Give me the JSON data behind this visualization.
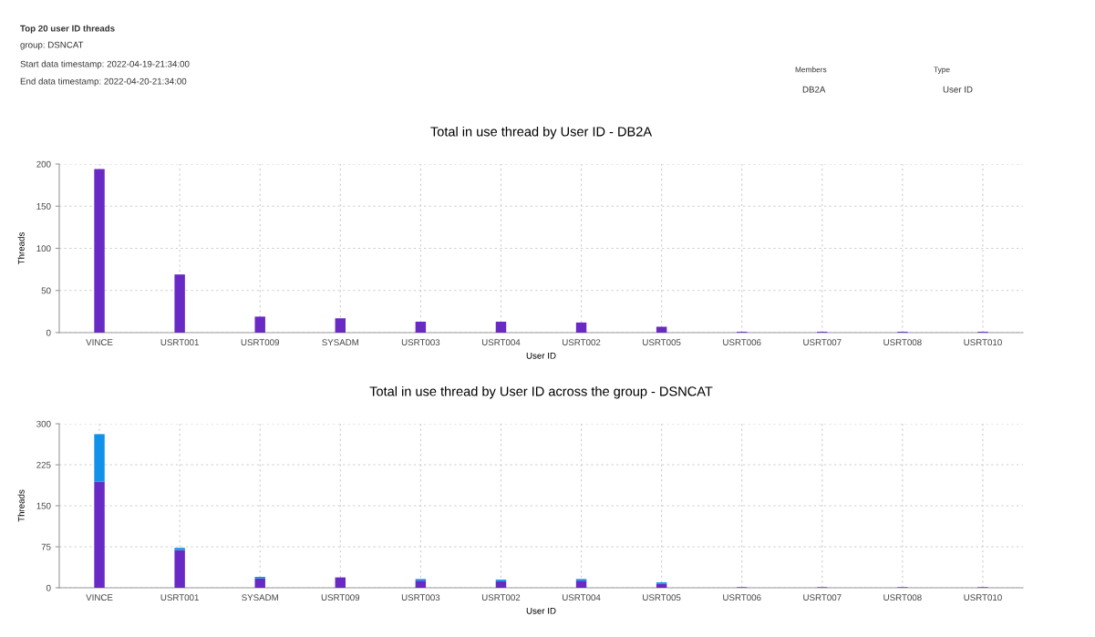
{
  "chart_data": [
    {
      "type": "bar",
      "title": "Total in use thread by User ID - DB2A",
      "xlabel": "User ID",
      "ylabel": "Threads",
      "categories": [
        "VINCE",
        "USRT001",
        "USRT009",
        "SYSADM",
        "USRT003",
        "USRT004",
        "USRT002",
        "USRT005",
        "USRT006",
        "USRT007",
        "USRT008",
        "USRT010"
      ],
      "values": [
        194,
        69,
        19,
        17,
        13,
        13,
        12,
        7,
        1,
        1,
        1,
        1
      ],
      "color": "#6929c4",
      "ylim": [
        0,
        200
      ],
      "yticks": [
        0,
        50,
        100,
        150,
        200
      ],
      "grid": true,
      "annotations": [
        "Top 20 user ID threads",
        "group: DSNCAT",
        "Start data timestamp: 2022-04-19-21:34:00",
        "End data timestamp: 2022-04-20-21:34:00",
        "Members",
        "DB2A",
        "Type",
        "User ID"
      ]
    },
    {
      "type": "bar",
      "title": "Total in use thread by User ID across the group - DSNCAT",
      "xlabel": "User ID",
      "ylabel": "Threads",
      "categories": [
        "VINCE",
        "USRT001",
        "SYSADM",
        "USRT009",
        "USRT003",
        "USRT002",
        "USRT004",
        "USRT005",
        "USRT006",
        "USRT007",
        "USRT008",
        "USRT010"
      ],
      "series": [
        {
          "color": "#6929c4",
          "values": [
            194,
            69,
            17,
            19,
            13,
            12,
            13,
            7,
            1,
            1,
            1,
            1
          ]
        },
        {
          "color": "#1192e8",
          "values": [
            87,
            4,
            3,
            0,
            3,
            3,
            3,
            3,
            0,
            0,
            0,
            0
          ]
        }
      ],
      "stacked": true,
      "ylim": [
        0,
        300
      ],
      "yticks": [
        0,
        75,
        150,
        225,
        300
      ],
      "grid": true
    }
  ]
}
